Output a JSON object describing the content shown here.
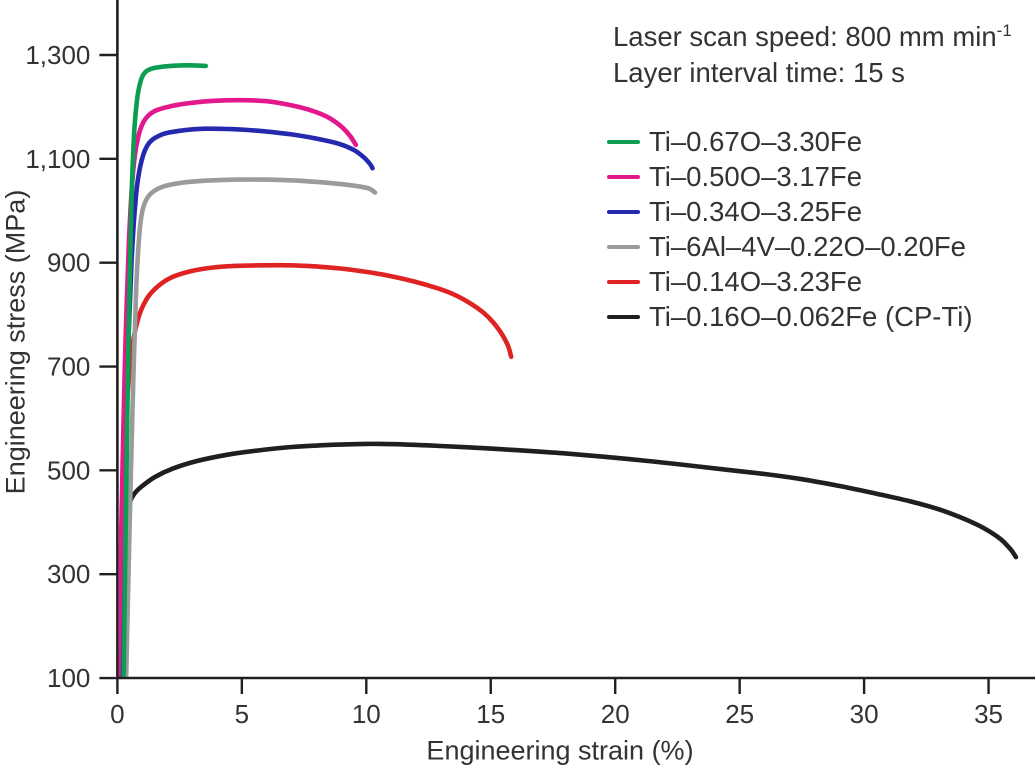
{
  "annotation": {
    "line1": "Laser scan speed: 800 mm min",
    "line1_sup": "-1",
    "line2": "Layer interval time: 15 s"
  },
  "chart_data": {
    "type": "line",
    "title": "",
    "xlabel": "Engineering strain (%)",
    "ylabel": "Engineering stress (MPa)",
    "xlim": [
      0,
      36.9
    ],
    "ylim": [
      100,
      1406
    ],
    "grid": false,
    "legend_position": "upper right",
    "x_ticks": {
      "values": [
        0,
        5,
        10,
        15,
        20,
        25,
        30,
        35
      ],
      "labels": [
        "0",
        "5",
        "10",
        "15",
        "20",
        "25",
        "30",
        "35"
      ]
    },
    "y_ticks": {
      "values": [
        100,
        300,
        500,
        700,
        900,
        1100,
        1300
      ],
      "labels": [
        "100",
        "300",
        "500",
        "700",
        "900",
        "1,100",
        "1,300"
      ]
    },
    "axis_color": "#231f20",
    "series": [
      {
        "name": "Ti–0.67O–3.30Fe",
        "color": "#0b9e53",
        "points": [
          [
            0.25,
            97
          ],
          [
            0.34,
            420
          ],
          [
            0.45,
            760
          ],
          [
            0.57,
            1025
          ],
          [
            0.68,
            1155
          ],
          [
            0.8,
            1218
          ],
          [
            0.95,
            1252
          ],
          [
            1.12,
            1267
          ],
          [
            1.4,
            1274
          ],
          [
            1.9,
            1278
          ],
          [
            2.5,
            1280
          ],
          [
            3.1,
            1280
          ],
          [
            3.55,
            1279
          ]
        ]
      },
      {
        "name": "Ti–0.50O–3.17Fe",
        "color": "#e2188c",
        "points": [
          [
            0.04,
            97
          ],
          [
            0.16,
            400
          ],
          [
            0.3,
            705
          ],
          [
            0.46,
            935
          ],
          [
            0.63,
            1075
          ],
          [
            0.84,
            1143
          ],
          [
            1.1,
            1175
          ],
          [
            1.5,
            1192
          ],
          [
            2.2,
            1202
          ],
          [
            3.0,
            1208
          ],
          [
            4.0,
            1212
          ],
          [
            5.0,
            1213
          ],
          [
            6.0,
            1211
          ],
          [
            7.0,
            1203
          ],
          [
            7.8,
            1193
          ],
          [
            8.5,
            1179
          ],
          [
            9.0,
            1162
          ],
          [
            9.35,
            1144
          ],
          [
            9.58,
            1127
          ]
        ]
      },
      {
        "name": "Ti–0.34O–3.25Fe",
        "color": "#2429ae",
        "points": [
          [
            0.12,
            97
          ],
          [
            0.25,
            400
          ],
          [
            0.4,
            685
          ],
          [
            0.57,
            905
          ],
          [
            0.76,
            1035
          ],
          [
            0.98,
            1098
          ],
          [
            1.28,
            1131
          ],
          [
            1.8,
            1147
          ],
          [
            2.5,
            1154
          ],
          [
            3.5,
            1158
          ],
          [
            4.7,
            1157
          ],
          [
            5.9,
            1153
          ],
          [
            7.0,
            1147
          ],
          [
            8.0,
            1139
          ],
          [
            8.9,
            1129
          ],
          [
            9.5,
            1117
          ],
          [
            9.9,
            1103
          ],
          [
            10.15,
            1090
          ],
          [
            10.25,
            1082
          ]
        ]
      },
      {
        "name": "Ti–6Al–4V–0.22O–0.20Fe",
        "color": "#9b9b9b",
        "points": [
          [
            0.35,
            97
          ],
          [
            0.47,
            350
          ],
          [
            0.61,
            625
          ],
          [
            0.76,
            855
          ],
          [
            0.9,
            965
          ],
          [
            1.05,
            1008
          ],
          [
            1.3,
            1031
          ],
          [
            1.8,
            1046
          ],
          [
            2.6,
            1054
          ],
          [
            3.6,
            1058
          ],
          [
            4.8,
            1060
          ],
          [
            6.0,
            1060
          ],
          [
            7.2,
            1058
          ],
          [
            8.4,
            1054
          ],
          [
            9.4,
            1049
          ],
          [
            10.1,
            1043
          ],
          [
            10.35,
            1035
          ]
        ]
      },
      {
        "name": "Ti–0.14O–3.23Fe",
        "color": "#df2323",
        "points": [
          [
            0.18,
            415
          ],
          [
            0.28,
            545
          ],
          [
            0.42,
            655
          ],
          [
            0.6,
            740
          ],
          [
            0.85,
            795
          ],
          [
            1.15,
            828
          ],
          [
            1.5,
            849
          ],
          [
            2.1,
            870
          ],
          [
            2.9,
            883
          ],
          [
            3.9,
            891
          ],
          [
            4.9,
            894
          ],
          [
            5.9,
            895
          ],
          [
            6.9,
            895
          ],
          [
            7.9,
            893
          ],
          [
            8.9,
            889
          ],
          [
            9.9,
            883
          ],
          [
            10.9,
            875
          ],
          [
            11.9,
            864
          ],
          [
            12.9,
            850
          ],
          [
            13.6,
            837
          ],
          [
            14.2,
            821
          ],
          [
            14.7,
            804
          ],
          [
            15.1,
            785
          ],
          [
            15.45,
            762
          ],
          [
            15.7,
            739
          ],
          [
            15.82,
            719
          ]
        ]
      },
      {
        "name": "Ti–0.16O–0.062Fe (CP-Ti)",
        "color": "#1f1f1f",
        "points": [
          [
            0.15,
            97
          ],
          [
            0.22,
            220
          ],
          [
            0.29,
            335
          ],
          [
            0.38,
            408
          ],
          [
            0.5,
            438
          ],
          [
            0.65,
            453
          ],
          [
            0.95,
            468
          ],
          [
            1.5,
            487
          ],
          [
            2.2,
            503
          ],
          [
            3.2,
            518
          ],
          [
            4.4,
            530
          ],
          [
            5.6,
            538
          ],
          [
            7.0,
            545
          ],
          [
            8.5,
            549
          ],
          [
            10.0,
            551
          ],
          [
            11.5,
            550
          ],
          [
            13.0,
            547
          ],
          [
            15.0,
            542
          ],
          [
            17.0,
            536
          ],
          [
            18.4,
            531
          ],
          [
            20.5,
            522
          ],
          [
            22.5,
            512
          ],
          [
            24.5,
            501
          ],
          [
            26.0,
            493
          ],
          [
            27.5,
            483
          ],
          [
            29.0,
            470
          ],
          [
            30.5,
            455
          ],
          [
            31.8,
            441
          ],
          [
            33.0,
            425
          ],
          [
            34.0,
            407
          ],
          [
            34.8,
            389
          ],
          [
            35.5,
            367
          ],
          [
            35.9,
            347
          ],
          [
            36.1,
            333
          ]
        ]
      }
    ]
  }
}
